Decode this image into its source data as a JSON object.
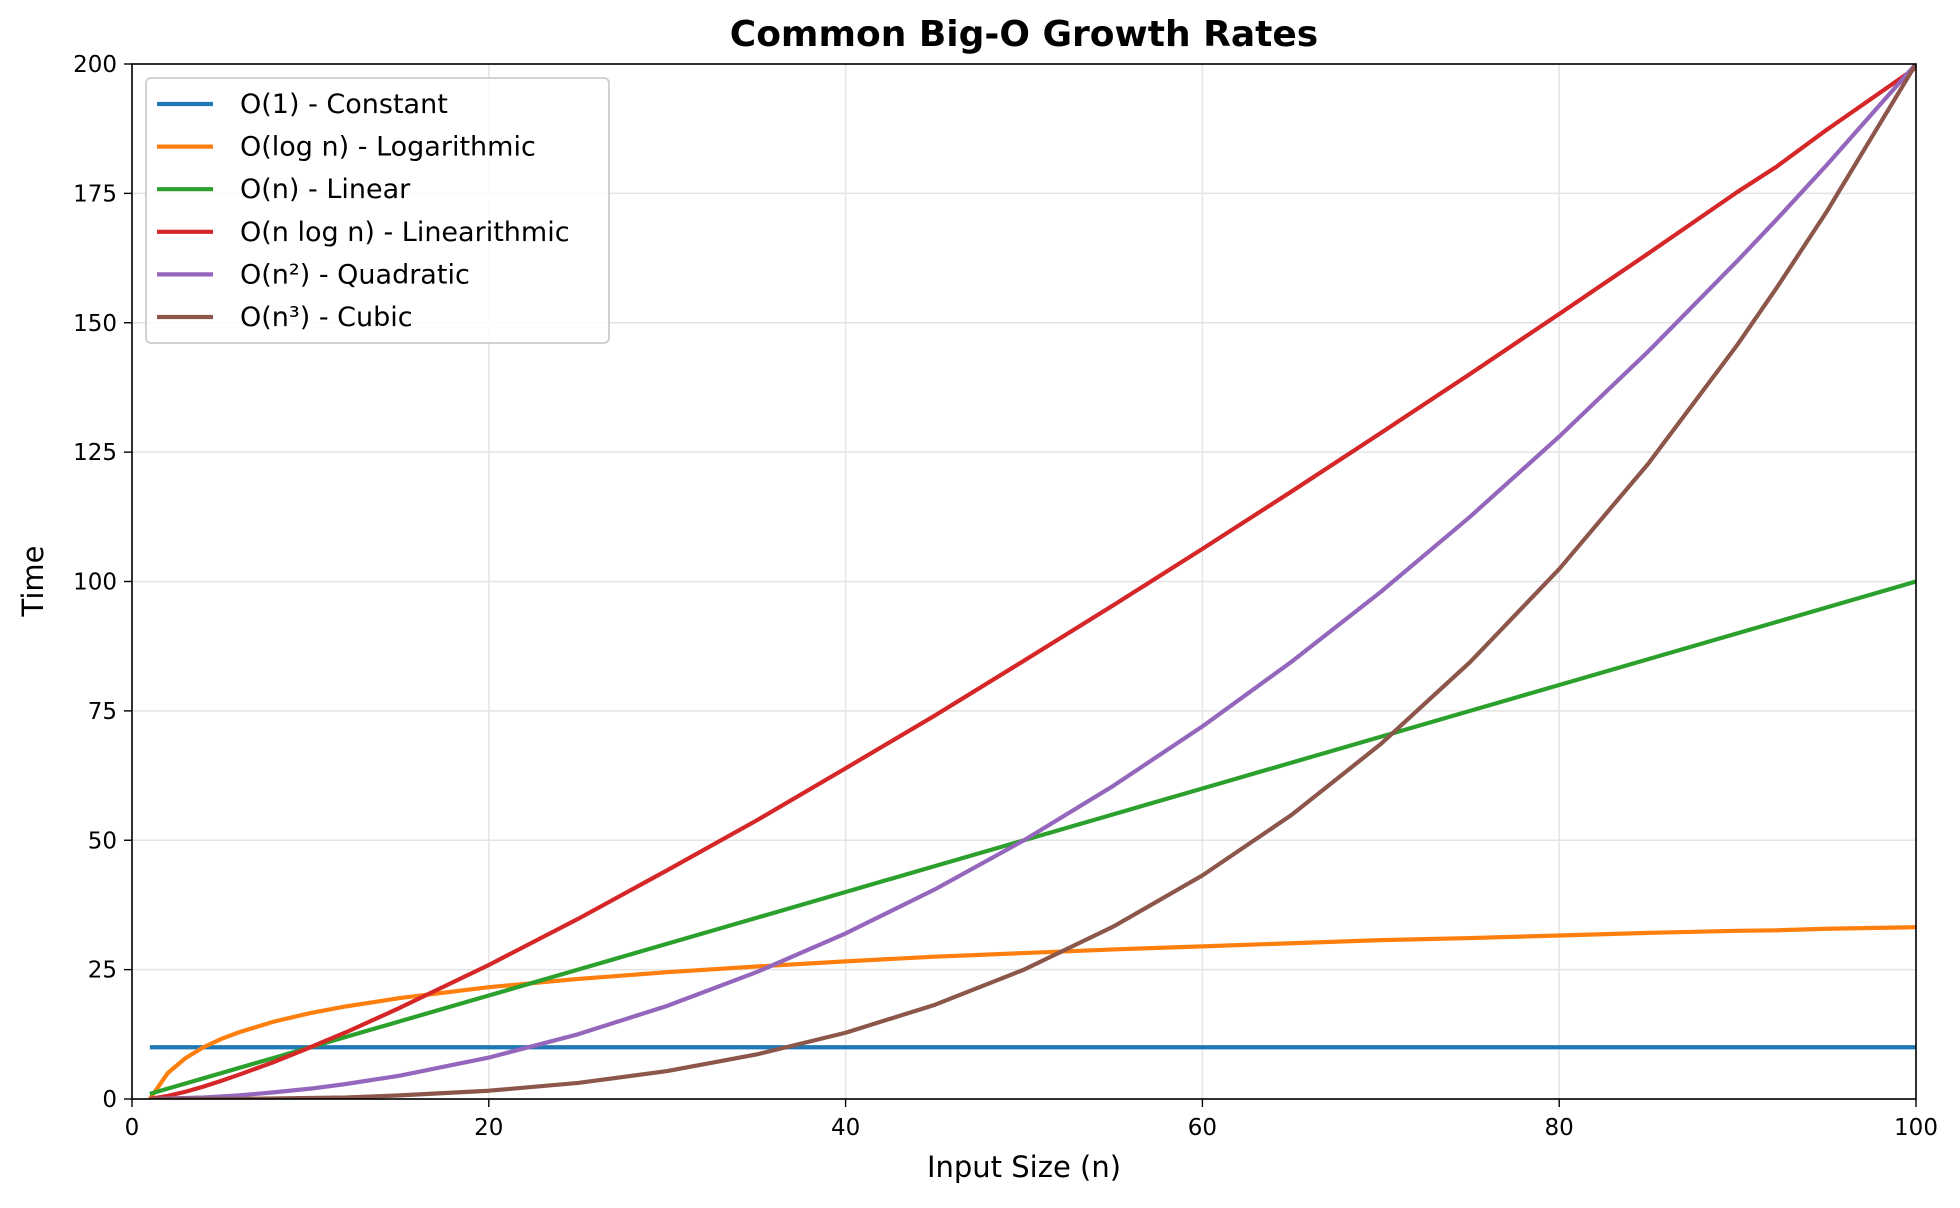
{
  "chart_data": {
    "type": "line",
    "title": "Common Big-O Growth Rates",
    "xlabel": "Input Size (n)",
    "ylabel": "Time",
    "xlim": [
      0,
      100
    ],
    "ylim": [
      0,
      200
    ],
    "x_ticks": [
      0,
      20,
      40,
      60,
      80,
      100
    ],
    "y_ticks": [
      0,
      25,
      50,
      75,
      100,
      125,
      150,
      175,
      200
    ],
    "grid": true,
    "legend_position": "upper-left",
    "x": [
      1,
      2,
      3,
      4,
      5,
      6,
      8,
      10,
      12,
      15,
      20,
      25,
      30,
      35,
      40,
      45,
      50,
      55,
      60,
      65,
      70,
      75,
      80,
      85,
      90,
      92.2,
      95,
      100
    ],
    "series": [
      {
        "name": "O(1) - Constant",
        "color": "#1f77b4",
        "values": [
          10,
          10,
          10,
          10,
          10,
          10,
          10,
          10,
          10,
          10,
          10,
          10,
          10,
          10,
          10,
          10,
          10,
          10,
          10,
          10,
          10,
          10,
          10,
          10,
          10,
          10,
          10,
          10
        ]
      },
      {
        "name": "O(log n) - Logarithmic",
        "color": "#ff7f0e",
        "values": [
          0,
          5,
          7.9,
          10,
          11.6,
          12.9,
          15,
          16.6,
          17.9,
          19.5,
          21.6,
          23.2,
          24.5,
          25.6,
          26.6,
          27.5,
          28.2,
          28.9,
          29.5,
          30.1,
          30.7,
          31.1,
          31.6,
          32.1,
          32.5,
          32.6,
          32.9,
          33.2
        ]
      },
      {
        "name": "O(n) - Linear",
        "color": "#2ca02c",
        "values": [
          1,
          2,
          3,
          4,
          5,
          6,
          8,
          10,
          12,
          15,
          20,
          25,
          30,
          35,
          40,
          45,
          50,
          55,
          60,
          65,
          70,
          75,
          80,
          85,
          90,
          92.2,
          95,
          100
        ]
      },
      {
        "name": "O(n log n) - Linearithmic",
        "color": "#d62728",
        "values": [
          0,
          0.6,
          1.4,
          2.4,
          3.5,
          4.7,
          7.2,
          10,
          12.9,
          17.6,
          25.9,
          34.8,
          44.2,
          53.8,
          63.9,
          74.1,
          84.7,
          95.4,
          106.3,
          117.4,
          128.7,
          140.1,
          151.7,
          163.4,
          175.3,
          180.2,
          187.3,
          199.3
        ]
      },
      {
        "name": "O(n²) - Quadratic",
        "color": "#9467bd",
        "values": [
          0,
          0.1,
          0.2,
          0.3,
          0.5,
          0.7,
          1.3,
          2,
          2.9,
          4.5,
          8,
          12.5,
          18,
          24.5,
          32,
          40.5,
          50,
          60.5,
          72,
          84.5,
          98,
          112.5,
          128,
          144.5,
          162,
          170,
          180.5,
          200
        ]
      },
      {
        "name": "O(n³) - Cubic",
        "color": "#8c564b",
        "values": [
          0,
          0,
          0,
          0,
          0,
          0,
          0.1,
          0.2,
          0.3,
          0.7,
          1.6,
          3.1,
          5.4,
          8.6,
          12.8,
          18.2,
          25,
          33.3,
          43.2,
          54.9,
          68.6,
          84.4,
          102.4,
          122.8,
          145.8,
          156.8,
          171.5,
          200
        ]
      }
    ]
  }
}
